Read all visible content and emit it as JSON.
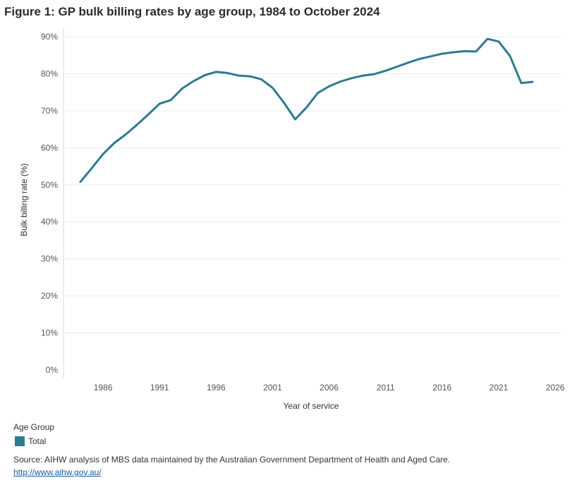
{
  "title": "Figure 1: GP bulk billing rates by age group, 1984 to October 2024",
  "legend": {
    "title": "Age Group",
    "items": [
      {
        "label": "Total",
        "color": "#2e7b8e"
      }
    ]
  },
  "source": {
    "text": "Source: AIHW analysis of MBS data maintained by the Australian Government Department of Health and Aged Care.",
    "link": "http://www.aihw.gov.au/"
  },
  "chart_data": {
    "type": "line",
    "xlabel": "Year of service",
    "ylabel": "Bulk billing rate (%)",
    "xlim": [
      1982.5,
      2026.5
    ],
    "ylim": [
      0,
      90
    ],
    "x_ticks": [
      1986,
      1991,
      1996,
      2001,
      2006,
      2011,
      2016,
      2021,
      2026
    ],
    "y_ticks": [
      0,
      10,
      20,
      30,
      40,
      50,
      60,
      70,
      80,
      90
    ],
    "y_tick_labels": [
      "0%",
      "10%",
      "20%",
      "30%",
      "40%",
      "50%",
      "60%",
      "70%",
      "80%",
      "90%"
    ],
    "grid": "horizontal",
    "legend_position": "bottom-left",
    "series": [
      {
        "name": "Total",
        "color": "#2e7b8e",
        "x": [
          1984,
          1985,
          1986,
          1987,
          1988,
          1989,
          1990,
          1991,
          1992,
          1993,
          1994,
          1995,
          1996,
          1997,
          1998,
          1999,
          2000,
          2001,
          2002,
          2003,
          2004,
          2005,
          2006,
          2007,
          2008,
          2009,
          2010,
          2011,
          2012,
          2013,
          2014,
          2015,
          2016,
          2017,
          2018,
          2019,
          2020,
          2021,
          2022,
          2023,
          2024
        ],
        "values": [
          50.8,
          54.5,
          58.3,
          61.3,
          63.6,
          66.2,
          69.0,
          71.9,
          72.9,
          76.0,
          78.0,
          79.6,
          80.5,
          80.2,
          79.5,
          79.3,
          78.5,
          76.2,
          72.2,
          67.7,
          70.9,
          74.8,
          76.6,
          77.9,
          78.8,
          79.5,
          79.9,
          80.8,
          81.9,
          83.0,
          84.0,
          84.7,
          85.4,
          85.8,
          86.1,
          86.0,
          89.4,
          88.7,
          84.8,
          77.5,
          77.8
        ]
      }
    ]
  }
}
